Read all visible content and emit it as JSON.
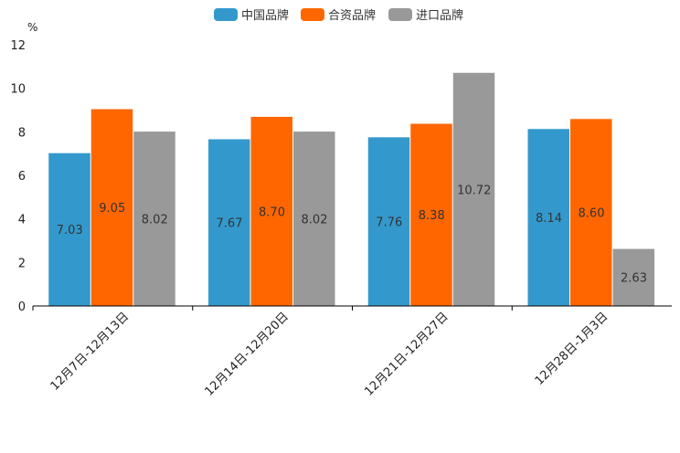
{
  "chart_data": {
    "type": "bar",
    "title": "",
    "xlabel": "",
    "ylabel": "%",
    "ylim": [
      0,
      12
    ],
    "yticks": [
      0,
      2,
      4,
      6,
      8,
      10,
      12
    ],
    "categories": [
      "12月7日-12月13日",
      "12月14日-12月20日",
      "12月21日-12月27日",
      "12月28日-1月3日"
    ],
    "series": [
      {
        "name": "中国品牌",
        "color": "#3399cc",
        "values": [
          7.03,
          7.67,
          7.76,
          8.14
        ]
      },
      {
        "name": "合资品牌",
        "color": "#ff6600",
        "values": [
          9.05,
          8.7,
          8.38,
          8.6
        ]
      },
      {
        "name": "进口品牌",
        "color": "#999999",
        "values": [
          8.02,
          8.02,
          10.72,
          2.63
        ]
      }
    ],
    "legend_position": "top-center",
    "value_label_format": "2dp"
  }
}
